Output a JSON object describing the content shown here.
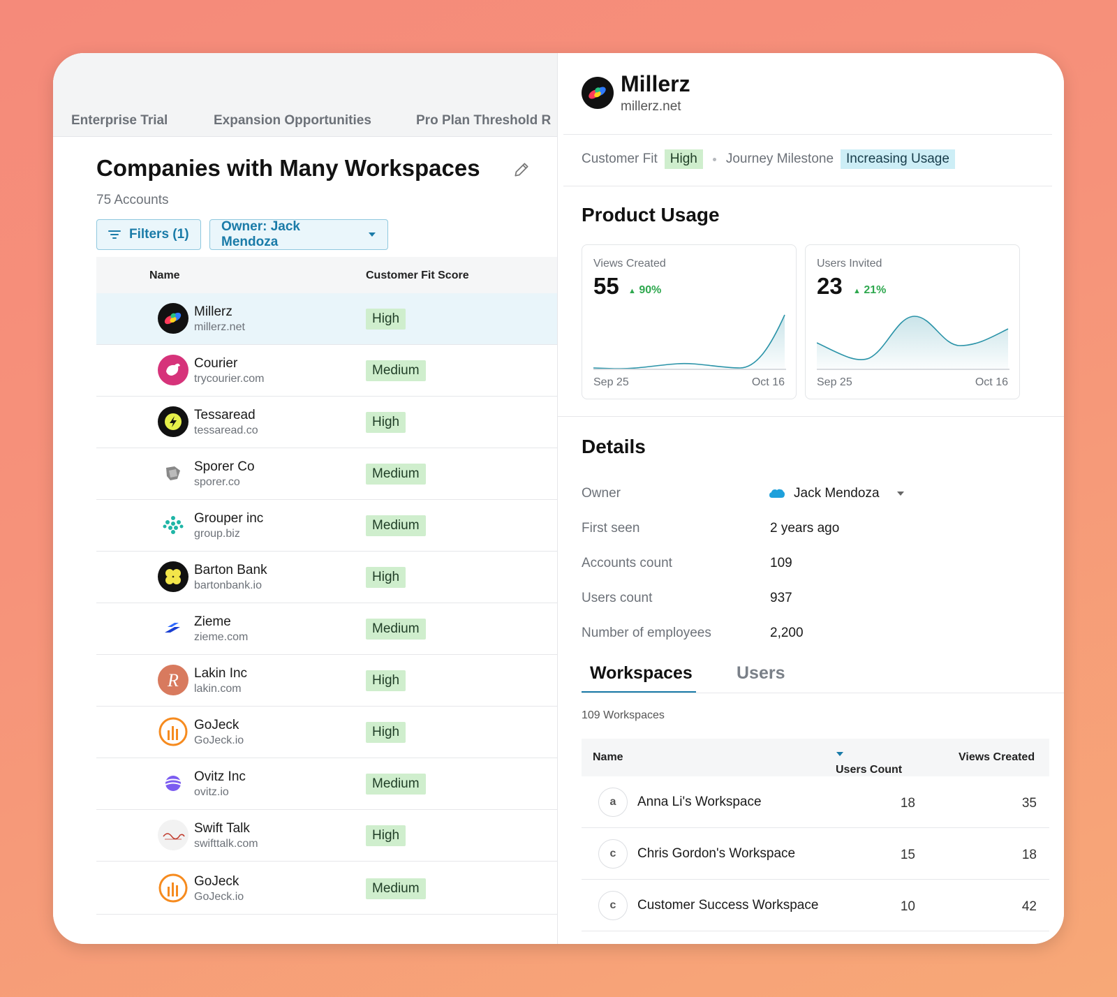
{
  "tabs": [
    "Enterprise Trial",
    "Expansion Opportunities",
    "Pro Plan Threshold R"
  ],
  "list": {
    "title": "Companies with Many Workspaces",
    "count": "75 Accounts",
    "filters_label": "Filters (1)",
    "owner_filter_label": "Owner: Jack Mendoza",
    "col_name": "Name",
    "col_fit": "Customer Fit Score",
    "rows": [
      {
        "name": "Millerz",
        "domain": "millerz.net",
        "fit": "High"
      },
      {
        "name": "Courier",
        "domain": "trycourier.com",
        "fit": "Medium"
      },
      {
        "name": "Tessaread",
        "domain": "tessaread.co",
        "fit": "High"
      },
      {
        "name": "Sporer Co",
        "domain": "sporer.co",
        "fit": "Medium"
      },
      {
        "name": "Grouper inc",
        "domain": "group.biz",
        "fit": "Medium"
      },
      {
        "name": "Barton Bank",
        "domain": "bartonbank.io",
        "fit": "High"
      },
      {
        "name": "Zieme",
        "domain": "zieme.com",
        "fit": "Medium"
      },
      {
        "name": "Lakin Inc",
        "domain": "lakin.com",
        "fit": "High"
      },
      {
        "name": "GoJeck",
        "domain": "GoJeck.io",
        "fit": "High"
      },
      {
        "name": "Ovitz Inc",
        "domain": "ovitz.io",
        "fit": "Medium"
      },
      {
        "name": "Swift Talk",
        "domain": "swifttalk.com",
        "fit": "High"
      },
      {
        "name": "GoJeck",
        "domain": "GoJeck.io",
        "fit": "Medium"
      }
    ]
  },
  "detail": {
    "name": "Millerz",
    "domain": "millerz.net",
    "customer_fit_label": "Customer Fit",
    "customer_fit_value": "High",
    "journey_label": "Journey Milestone",
    "journey_value": "Increasing Usage",
    "usage_title": "Product Usage",
    "cards": [
      {
        "label": "Views Created",
        "value": "55",
        "delta": "90%",
        "x_start": "Sep 25",
        "x_end": "Oct 16"
      },
      {
        "label": "Users Invited",
        "value": "23",
        "delta": "21%",
        "x_start": "Sep 25",
        "x_end": "Oct 16"
      }
    ],
    "details_title": "Details",
    "fields": [
      {
        "label": "Owner",
        "value": "Jack Mendoza"
      },
      {
        "label": "First seen",
        "value": "2 years ago"
      },
      {
        "label": "Accounts count",
        "value": "109"
      },
      {
        "label": "Users count",
        "value": "937"
      },
      {
        "label": "Number of employees",
        "value": "2,200"
      }
    ],
    "sub_tabs": [
      "Workspaces",
      "Users"
    ],
    "workspaces_count": "109 Workspaces",
    "ws_col_name": "Name",
    "ws_col_users": "Users Count",
    "ws_col_views": "Views Created",
    "workspaces": [
      {
        "initial": "a",
        "name": "Anna Li's Workspace",
        "users": "18",
        "views": "35"
      },
      {
        "initial": "c",
        "name": "Chris Gordon's Workspace",
        "users": "15",
        "views": "18"
      },
      {
        "initial": "c",
        "name": "Customer Success Workspace",
        "users": "10",
        "views": "42"
      }
    ]
  },
  "colors": {
    "accent": "#1a7ba8",
    "badge_green": "#cfeecd",
    "badge_blue": "#cdeef6",
    "delta_green": "#2fa84f",
    "chart_line": "#2a93a8"
  },
  "icons": [
    "edit-pencil-icon",
    "filter-icon",
    "caret-down-icon",
    "salesforce-cloud-icon",
    "sort-desc-icon",
    "trend-up-icon"
  ]
}
